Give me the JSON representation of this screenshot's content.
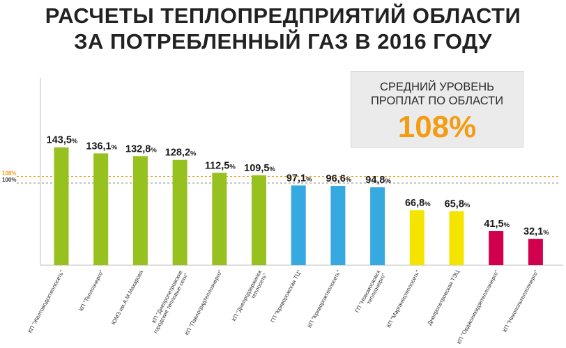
{
  "title": {
    "line1": "РАСЧЕТЫ ТЕПЛОПРЕДПРИЯТИЙ ОБЛАСТИ",
    "line2": "ЗА ПОТРЕБЛЕННЫЙ ГАЗ В 2016 ГОДУ"
  },
  "summary": {
    "label_line1": "СРЕДНИЙ УРОВЕНЬ",
    "label_line2": "ПРОПЛАТ ПО ОБЛАСТИ",
    "value": "108%"
  },
  "colors": {
    "green": "#97c11f",
    "blue": "#36a9e1",
    "yellow": "#f5e400",
    "crimson": "#d1004e",
    "average_line": "#f39c12",
    "reference_line": "#888888"
  },
  "chart_data": {
    "type": "bar",
    "unit": "%",
    "reference_lines": [
      {
        "value": 108,
        "label": "108%"
      },
      {
        "value": 100,
        "label": "100%"
      }
    ],
    "categories": [
      [
        "КП \"Желтоводсктеплосеть\""
      ],
      [
        "КП \"Теплоэнерго\""
      ],
      [
        "ЮМЗ им.А.М.Макарова"
      ],
      [
        "КП \"Днепропетровские",
        "городские тепловые сети\""
      ],
      [
        "КП \"Павлоградтеплоэнерго\""
      ],
      [
        "КП \"Днепродзержинск",
        "теплосеть\""
      ],
      [
        "ГП \"Криворожская ТЦ\""
      ],
      [
        "КП \"Криворожтеплосеть\""
      ],
      [
        "ГП \"Новомосковск",
        "теплоэнерго\""
      ],
      [
        "КП \"Марганецтеплосеть\""
      ],
      [
        "Днепропетровская ТЭЦ"
      ],
      [
        "КП \"Орджоникидзетеплоэнерго\""
      ],
      [
        "КП \"Никопольтеплоэнерго\""
      ]
    ],
    "values": [
      143.5,
      136.1,
      132.8,
      128.2,
      112.5,
      109.5,
      97.1,
      96.6,
      94.8,
      66.8,
      65.8,
      41.5,
      32.1
    ],
    "value_labels": [
      "143,5",
      "136,1",
      "132,8",
      "128,2",
      "112,5",
      "109,5",
      "97,1",
      "96,6",
      "94,8",
      "66,8",
      "65,8",
      "41,5",
      "32,1"
    ],
    "bar_colors": [
      "green",
      "green",
      "green",
      "green",
      "green",
      "green",
      "blue",
      "blue",
      "blue",
      "yellow",
      "yellow",
      "crimson",
      "crimson"
    ]
  }
}
